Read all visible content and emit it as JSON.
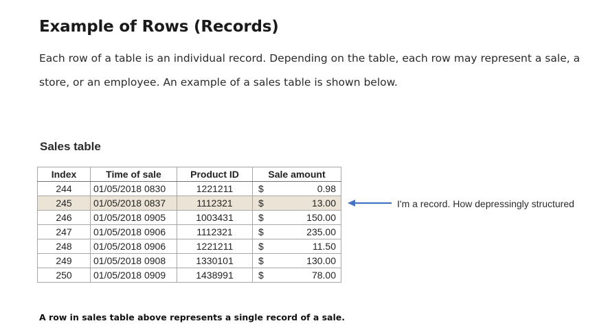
{
  "heading": "Example of Rows (Records)",
  "intro": "Each row of a table is an individual record. Depending on the table, each row may represent a sale, a store, or an employee. An example of a sales table is shown below.",
  "table": {
    "caption": "Sales table",
    "headers": [
      "Index",
      "Time of sale",
      "Product ID",
      "Sale amount"
    ],
    "currency_symbol": "$",
    "highlight_index": 1,
    "highlight_color": "#ebe4d6",
    "rows": [
      {
        "index": "244",
        "time": "01/05/2018 0830",
        "product": "1221211",
        "amount": "0.98"
      },
      {
        "index": "245",
        "time": "01/05/2018 0837",
        "product": "1112321",
        "amount": "13.00"
      },
      {
        "index": "246",
        "time": "01/05/2018 0905",
        "product": "1003431",
        "amount": "150.00"
      },
      {
        "index": "247",
        "time": "01/05/2018 0906",
        "product": "1112321",
        "amount": "235.00"
      },
      {
        "index": "248",
        "time": "01/05/2018 0906",
        "product": "1221211",
        "amount": "11.50"
      },
      {
        "index": "249",
        "time": "01/05/2018 0908",
        "product": "1330101",
        "amount": "130.00"
      },
      {
        "index": "250",
        "time": "01/05/2018 0909",
        "product": "1438991",
        "amount": "78.00"
      }
    ]
  },
  "annotation": {
    "text": "I'm a record. How depressingly structured",
    "arrow_icon": "arrow-left-icon",
    "arrow_color": "#4472c4"
  },
  "footnote": "A row in sales table above represents a single record of a sale."
}
